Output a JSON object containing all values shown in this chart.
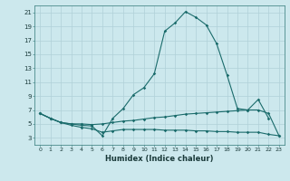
{
  "xlabel": "Humidex (Indice chaleur)",
  "bg_color": "#cce8ed",
  "grid_color": "#b0d0d8",
  "line_color": "#1a6b6b",
  "xlim": [
    -0.5,
    23.5
  ],
  "ylim": [
    2.0,
    22.0
  ],
  "xticks": [
    0,
    1,
    2,
    3,
    4,
    5,
    6,
    7,
    8,
    9,
    10,
    11,
    12,
    13,
    14,
    15,
    16,
    17,
    18,
    19,
    20,
    21,
    22,
    23
  ],
  "yticks": [
    3,
    5,
    7,
    9,
    11,
    13,
    15,
    17,
    19,
    21
  ],
  "line1_x": [
    0,
    1,
    2,
    3,
    4,
    5,
    6,
    7,
    8,
    9,
    10,
    11,
    12,
    13,
    14,
    15,
    16,
    17,
    18,
    19,
    20,
    21,
    22
  ],
  "line1_y": [
    6.5,
    5.8,
    5.2,
    5.0,
    4.8,
    4.7,
    3.3,
    5.8,
    7.2,
    9.2,
    10.2,
    12.2,
    18.3,
    19.5,
    21.1,
    20.3,
    19.2,
    16.5,
    12.0,
    7.2,
    7.0,
    8.5,
    5.8
  ],
  "line2_x": [
    0,
    1,
    2,
    3,
    4,
    5,
    6,
    7,
    8,
    9,
    10,
    11,
    12,
    13,
    14,
    15,
    16,
    17,
    18,
    19,
    20,
    21,
    22,
    23
  ],
  "line2_y": [
    6.5,
    5.8,
    5.2,
    5.0,
    5.0,
    4.9,
    5.0,
    5.2,
    5.4,
    5.5,
    5.7,
    5.9,
    6.0,
    6.2,
    6.4,
    6.5,
    6.6,
    6.7,
    6.8,
    6.9,
    7.0,
    7.0,
    6.5,
    3.3
  ],
  "line3_x": [
    0,
    1,
    2,
    3,
    4,
    5,
    6,
    7,
    8,
    9,
    10,
    11,
    12,
    13,
    14,
    15,
    16,
    17,
    18,
    19,
    20,
    21,
    22,
    23
  ],
  "line3_y": [
    6.5,
    5.8,
    5.2,
    4.8,
    4.5,
    4.3,
    3.8,
    4.0,
    4.2,
    4.2,
    4.2,
    4.2,
    4.1,
    4.1,
    4.1,
    4.0,
    4.0,
    3.9,
    3.9,
    3.8,
    3.8,
    3.8,
    3.5,
    3.3
  ]
}
